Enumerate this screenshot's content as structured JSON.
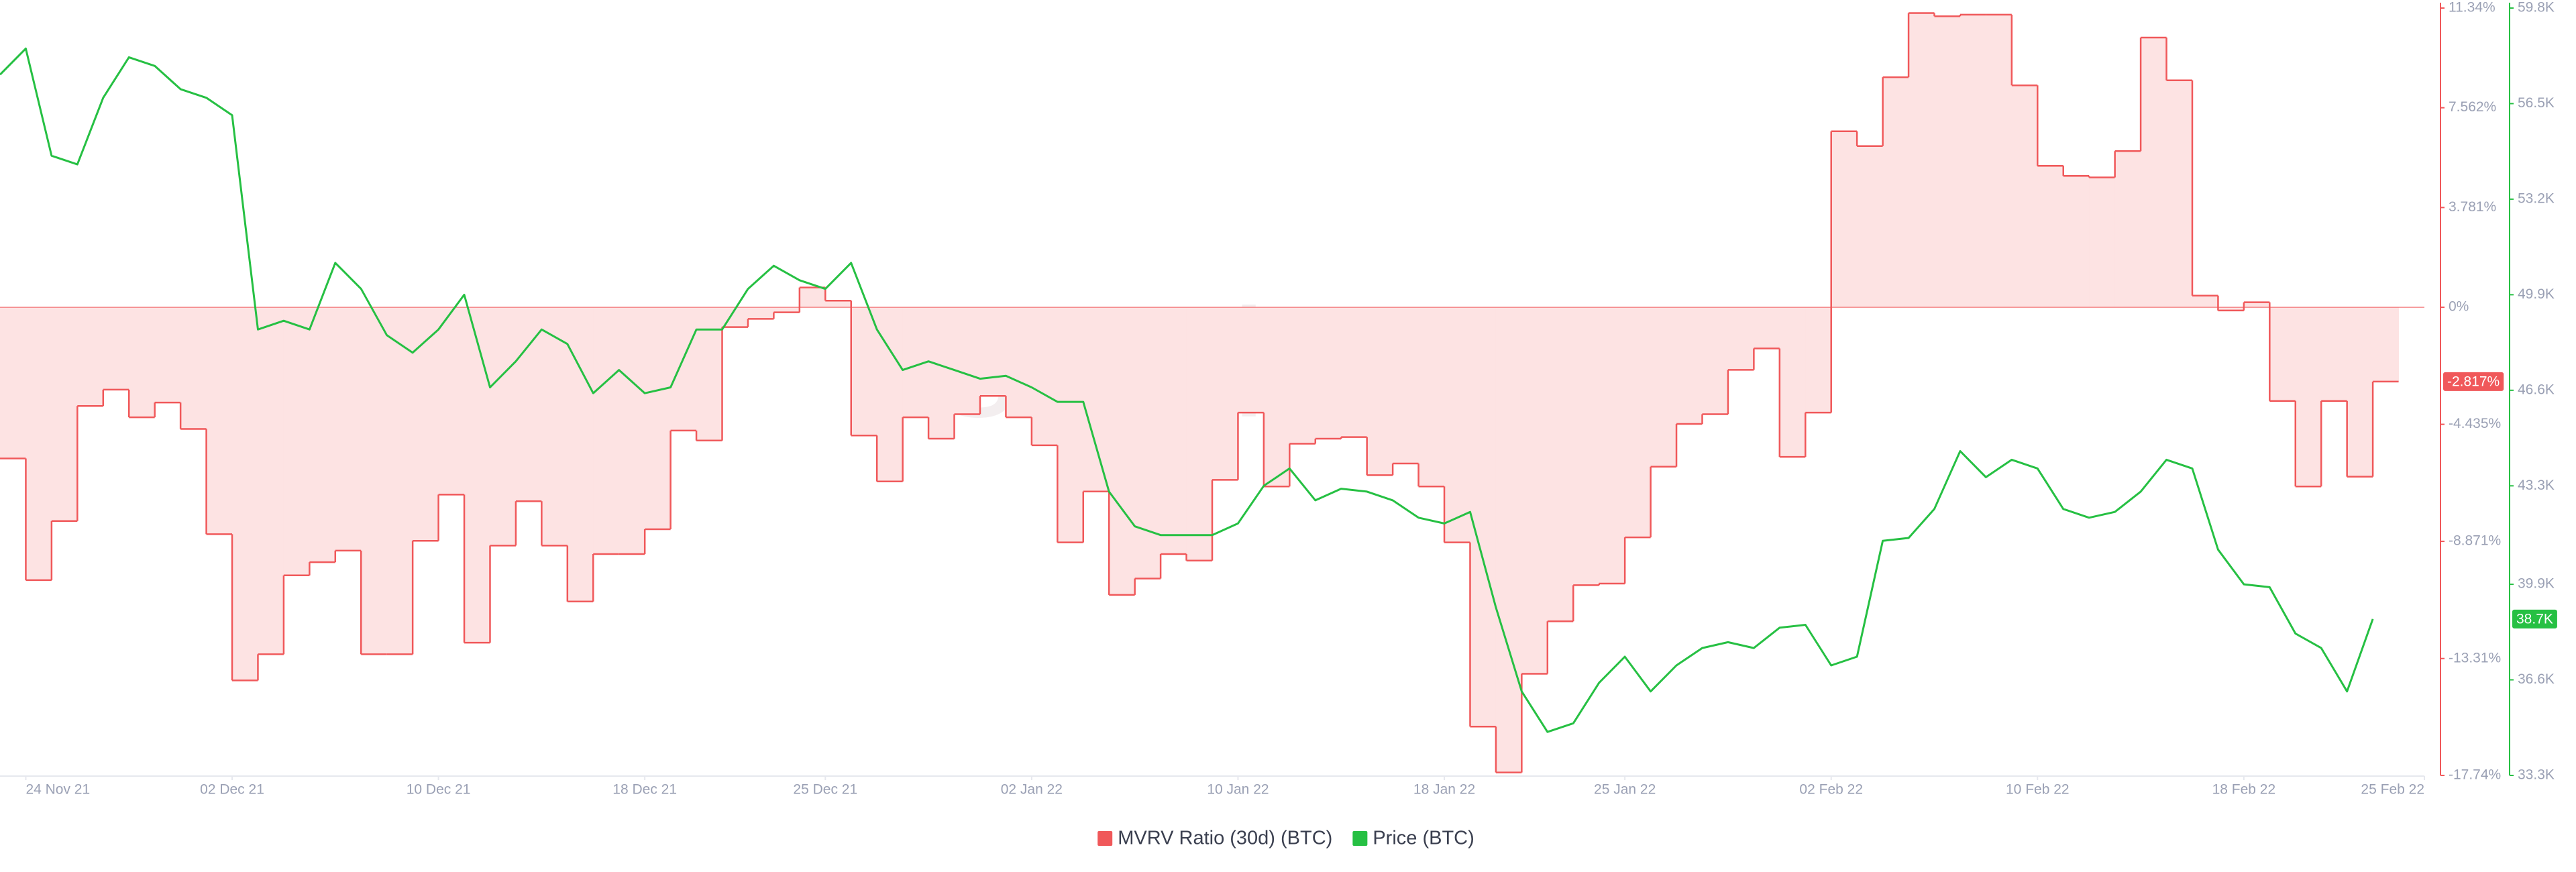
{
  "chart_data": {
    "type": "line",
    "watermark": "santiment",
    "x": [
      "2021-11-23",
      "2021-11-24",
      "2021-11-25",
      "2021-11-26",
      "2021-11-27",
      "2021-11-28",
      "2021-11-29",
      "2021-11-30",
      "2021-12-01",
      "2021-12-02",
      "2021-12-03",
      "2021-12-04",
      "2021-12-05",
      "2021-12-06",
      "2021-12-07",
      "2021-12-08",
      "2021-12-09",
      "2021-12-10",
      "2021-12-11",
      "2021-12-12",
      "2021-12-13",
      "2021-12-14",
      "2021-12-15",
      "2021-12-16",
      "2021-12-17",
      "2021-12-18",
      "2021-12-19",
      "2021-12-20",
      "2021-12-21",
      "2021-12-22",
      "2021-12-23",
      "2021-12-24",
      "2021-12-25",
      "2021-12-26",
      "2021-12-27",
      "2021-12-28",
      "2021-12-29",
      "2021-12-30",
      "2021-12-31",
      "2022-01-01",
      "2022-01-02",
      "2022-01-03",
      "2022-01-04",
      "2022-01-05",
      "2022-01-06",
      "2022-01-07",
      "2022-01-08",
      "2022-01-09",
      "2022-01-10",
      "2022-01-11",
      "2022-01-12",
      "2022-01-13",
      "2022-01-14",
      "2022-01-15",
      "2022-01-16",
      "2022-01-17",
      "2022-01-18",
      "2022-01-19",
      "2022-01-20",
      "2022-01-21",
      "2022-01-22",
      "2022-01-23",
      "2022-01-24",
      "2022-01-25",
      "2022-01-26",
      "2022-01-27",
      "2022-01-28",
      "2022-01-29",
      "2022-01-30",
      "2022-01-31",
      "2022-02-01",
      "2022-02-02",
      "2022-02-03",
      "2022-02-04",
      "2022-02-05",
      "2022-02-06",
      "2022-02-07",
      "2022-02-08",
      "2022-02-09",
      "2022-02-10",
      "2022-02-11",
      "2022-02-12",
      "2022-02-13",
      "2022-02-14",
      "2022-02-15",
      "2022-02-16",
      "2022-02-17",
      "2022-02-18",
      "2022-02-19",
      "2022-02-20",
      "2022-02-21",
      "2022-02-22",
      "2022-02-23"
    ],
    "xlim": [
      "2021-11-23",
      "2022-02-25"
    ],
    "xticks": [
      {
        "value": "2021-11-24",
        "label": "24 Nov 21"
      },
      {
        "value": "2021-12-02",
        "label": "02 Dec 21"
      },
      {
        "value": "2021-12-10",
        "label": "10 Dec 21"
      },
      {
        "value": "2021-12-18",
        "label": "18 Dec 21"
      },
      {
        "value": "2021-12-25",
        "label": "25 Dec 21"
      },
      {
        "value": "2022-01-02",
        "label": "02 Jan 22"
      },
      {
        "value": "2022-01-10",
        "label": "10 Jan 22"
      },
      {
        "value": "2022-01-18",
        "label": "18 Jan 22"
      },
      {
        "value": "2022-01-25",
        "label": "25 Jan 22"
      },
      {
        "value": "2022-02-02",
        "label": "02 Feb 22"
      },
      {
        "value": "2022-02-10",
        "label": "10 Feb 22"
      },
      {
        "value": "2022-02-18",
        "label": "18 Feb 22"
      },
      {
        "value": "2022-02-25",
        "label": "25 Feb 22"
      }
    ],
    "ylim": [
      -17.74,
      11.34
    ],
    "yticks": [
      {
        "value": 11.34,
        "label": "11.34%"
      },
      {
        "value": 7.562,
        "label": "7.562%"
      },
      {
        "value": 3.781,
        "label": "3.781%"
      },
      {
        "value": 0,
        "label": "0%"
      },
      {
        "value": -4.435,
        "label": "-4.435%"
      },
      {
        "value": -8.871,
        "label": "-8.871%"
      },
      {
        "value": -13.31,
        "label": "-13.31%"
      },
      {
        "value": -17.74,
        "label": "-17.74%"
      }
    ],
    "y2lim": [
      33300,
      59800
    ],
    "y2ticks": [
      {
        "value": 59800,
        "label": "59.8K"
      },
      {
        "value": 56500,
        "label": "56.5K"
      },
      {
        "value": 53200,
        "label": "53.2K"
      },
      {
        "value": 49900,
        "label": "49.9K"
      },
      {
        "value": 46600,
        "label": "46.6K"
      },
      {
        "value": 43300,
        "label": "43.3K"
      },
      {
        "value": 39900,
        "label": "39.9K"
      },
      {
        "value": 36600,
        "label": "36.6K"
      },
      {
        "value": 33300,
        "label": "33.3K"
      }
    ],
    "legend": "bottom",
    "series": [
      {
        "name": "MVRV Ratio (30d) (BTC)",
        "color": "#f0585a",
        "style": "step-area",
        "values": [
          -5.73,
          -10.34,
          -8.1,
          -3.74,
          -3.12,
          -4.17,
          -3.61,
          -4.61,
          -8.6,
          -14.14,
          -13.15,
          -10.16,
          -9.66,
          -9.22,
          -13.15,
          -13.15,
          -8.85,
          -7.1,
          -12.71,
          -9.03,
          -7.35,
          -9.03,
          -11.15,
          -9.35,
          -9.35,
          -8.41,
          -4.67,
          -5.05,
          -0.75,
          -0.44,
          -0.19,
          0.75,
          0.25,
          -4.86,
          -6.6,
          -4.17,
          -4.98,
          -4.05,
          -3.36,
          -4.17,
          -5.23,
          -8.91,
          -6.98,
          -10.9,
          -10.28,
          -9.35,
          -9.6,
          -6.54,
          -3.99,
          -6.79,
          -5.17,
          -4.98,
          -4.92,
          -6.36,
          -5.92,
          -6.79,
          -8.91,
          -15.89,
          -17.63,
          -13.89,
          -11.9,
          -10.53,
          -10.47,
          -8.72,
          -6.04,
          -4.42,
          -4.05,
          -2.37,
          -1.56,
          -5.67,
          -3.99,
          6.67,
          6.11,
          8.72,
          11.15,
          11.03,
          11.09,
          11.09,
          8.41,
          5.36,
          4.98,
          4.92,
          5.92,
          10.22,
          8.6,
          0.44,
          -0.12,
          0.19,
          -3.55,
          -6.79,
          -3.55,
          -6.42,
          -2.817
        ],
        "current_label": {
          "value": -2.817,
          "label": "-2.817%"
        }
      },
      {
        "name": "Price (BTC)",
        "color": "#26c043",
        "axis": "y2",
        "style": "line",
        "values": [
          57500,
          58400,
          54700,
          54400,
          56700,
          58100,
          57800,
          57000,
          56700,
          56100,
          48700,
          49000,
          48700,
          51000,
          50100,
          48500,
          47900,
          48700,
          49900,
          46700,
          47600,
          48700,
          48200,
          46500,
          47300,
          46500,
          46700,
          48700,
          48700,
          50100,
          50900,
          50400,
          50100,
          51000,
          48700,
          47300,
          47600,
          47300,
          47000,
          47100,
          46700,
          46200,
          46200,
          43100,
          41900,
          41600,
          41600,
          41600,
          42000,
          43300,
          43900,
          42800,
          43200,
          43100,
          42800,
          42200,
          42000,
          42400,
          39100,
          36200,
          34800,
          35100,
          36500,
          37400,
          36200,
          37100,
          37700,
          37900,
          37700,
          38400,
          38500,
          37100,
          37400,
          41400,
          41500,
          42500,
          44500,
          43600,
          44200,
          43900,
          42500,
          42200,
          42400,
          43100,
          44200,
          43900,
          41100,
          39900,
          39800,
          38200,
          37700,
          36200,
          38700
        ],
        "current_label": {
          "value": 38700,
          "label": "38.7K"
        }
      }
    ]
  }
}
